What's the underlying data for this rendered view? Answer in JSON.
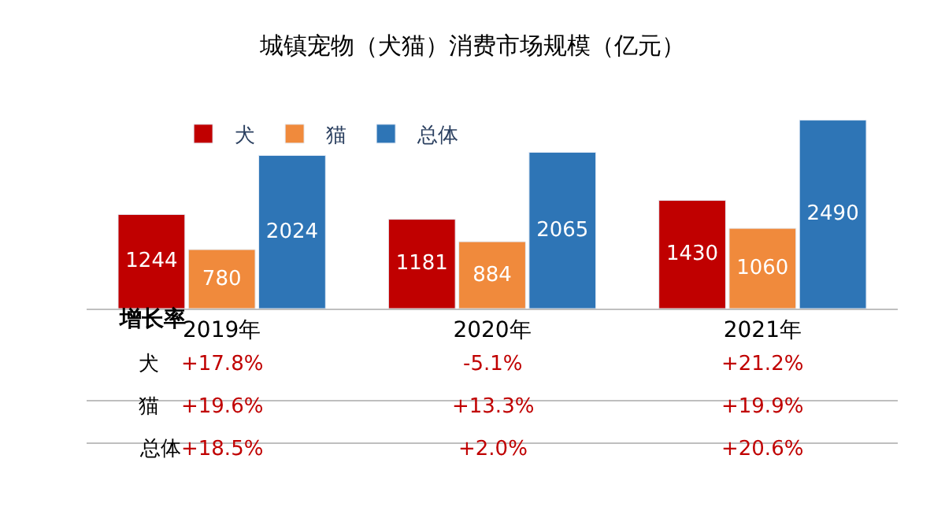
{
  "chart_data": {
    "type": "bar",
    "title": "城镇宠物（犬猫）消费市场规模（亿元）",
    "categories": [
      "2019年",
      "2020年",
      "2021年"
    ],
    "series": [
      {
        "name": "犬",
        "color": "#c00000",
        "values": [
          1244,
          1181,
          1430
        ]
      },
      {
        "name": "猫",
        "color": "#f08a3c",
        "values": [
          780,
          884,
          1060
        ]
      },
      {
        "name": "总体",
        "color": "#2e75b6",
        "values": [
          2024,
          2065,
          2490
        ]
      }
    ],
    "data_labels": true,
    "legend": "top",
    "annotations": [
      "增长率",
      "犬",
      "+17.8%",
      "-5.1%",
      "+21.2%",
      "猫",
      "+19.6%",
      "+13.3%",
      "+19.9%",
      "总体",
      "+18.5%",
      "+2.0%",
      "+20.6%"
    ]
  }
}
